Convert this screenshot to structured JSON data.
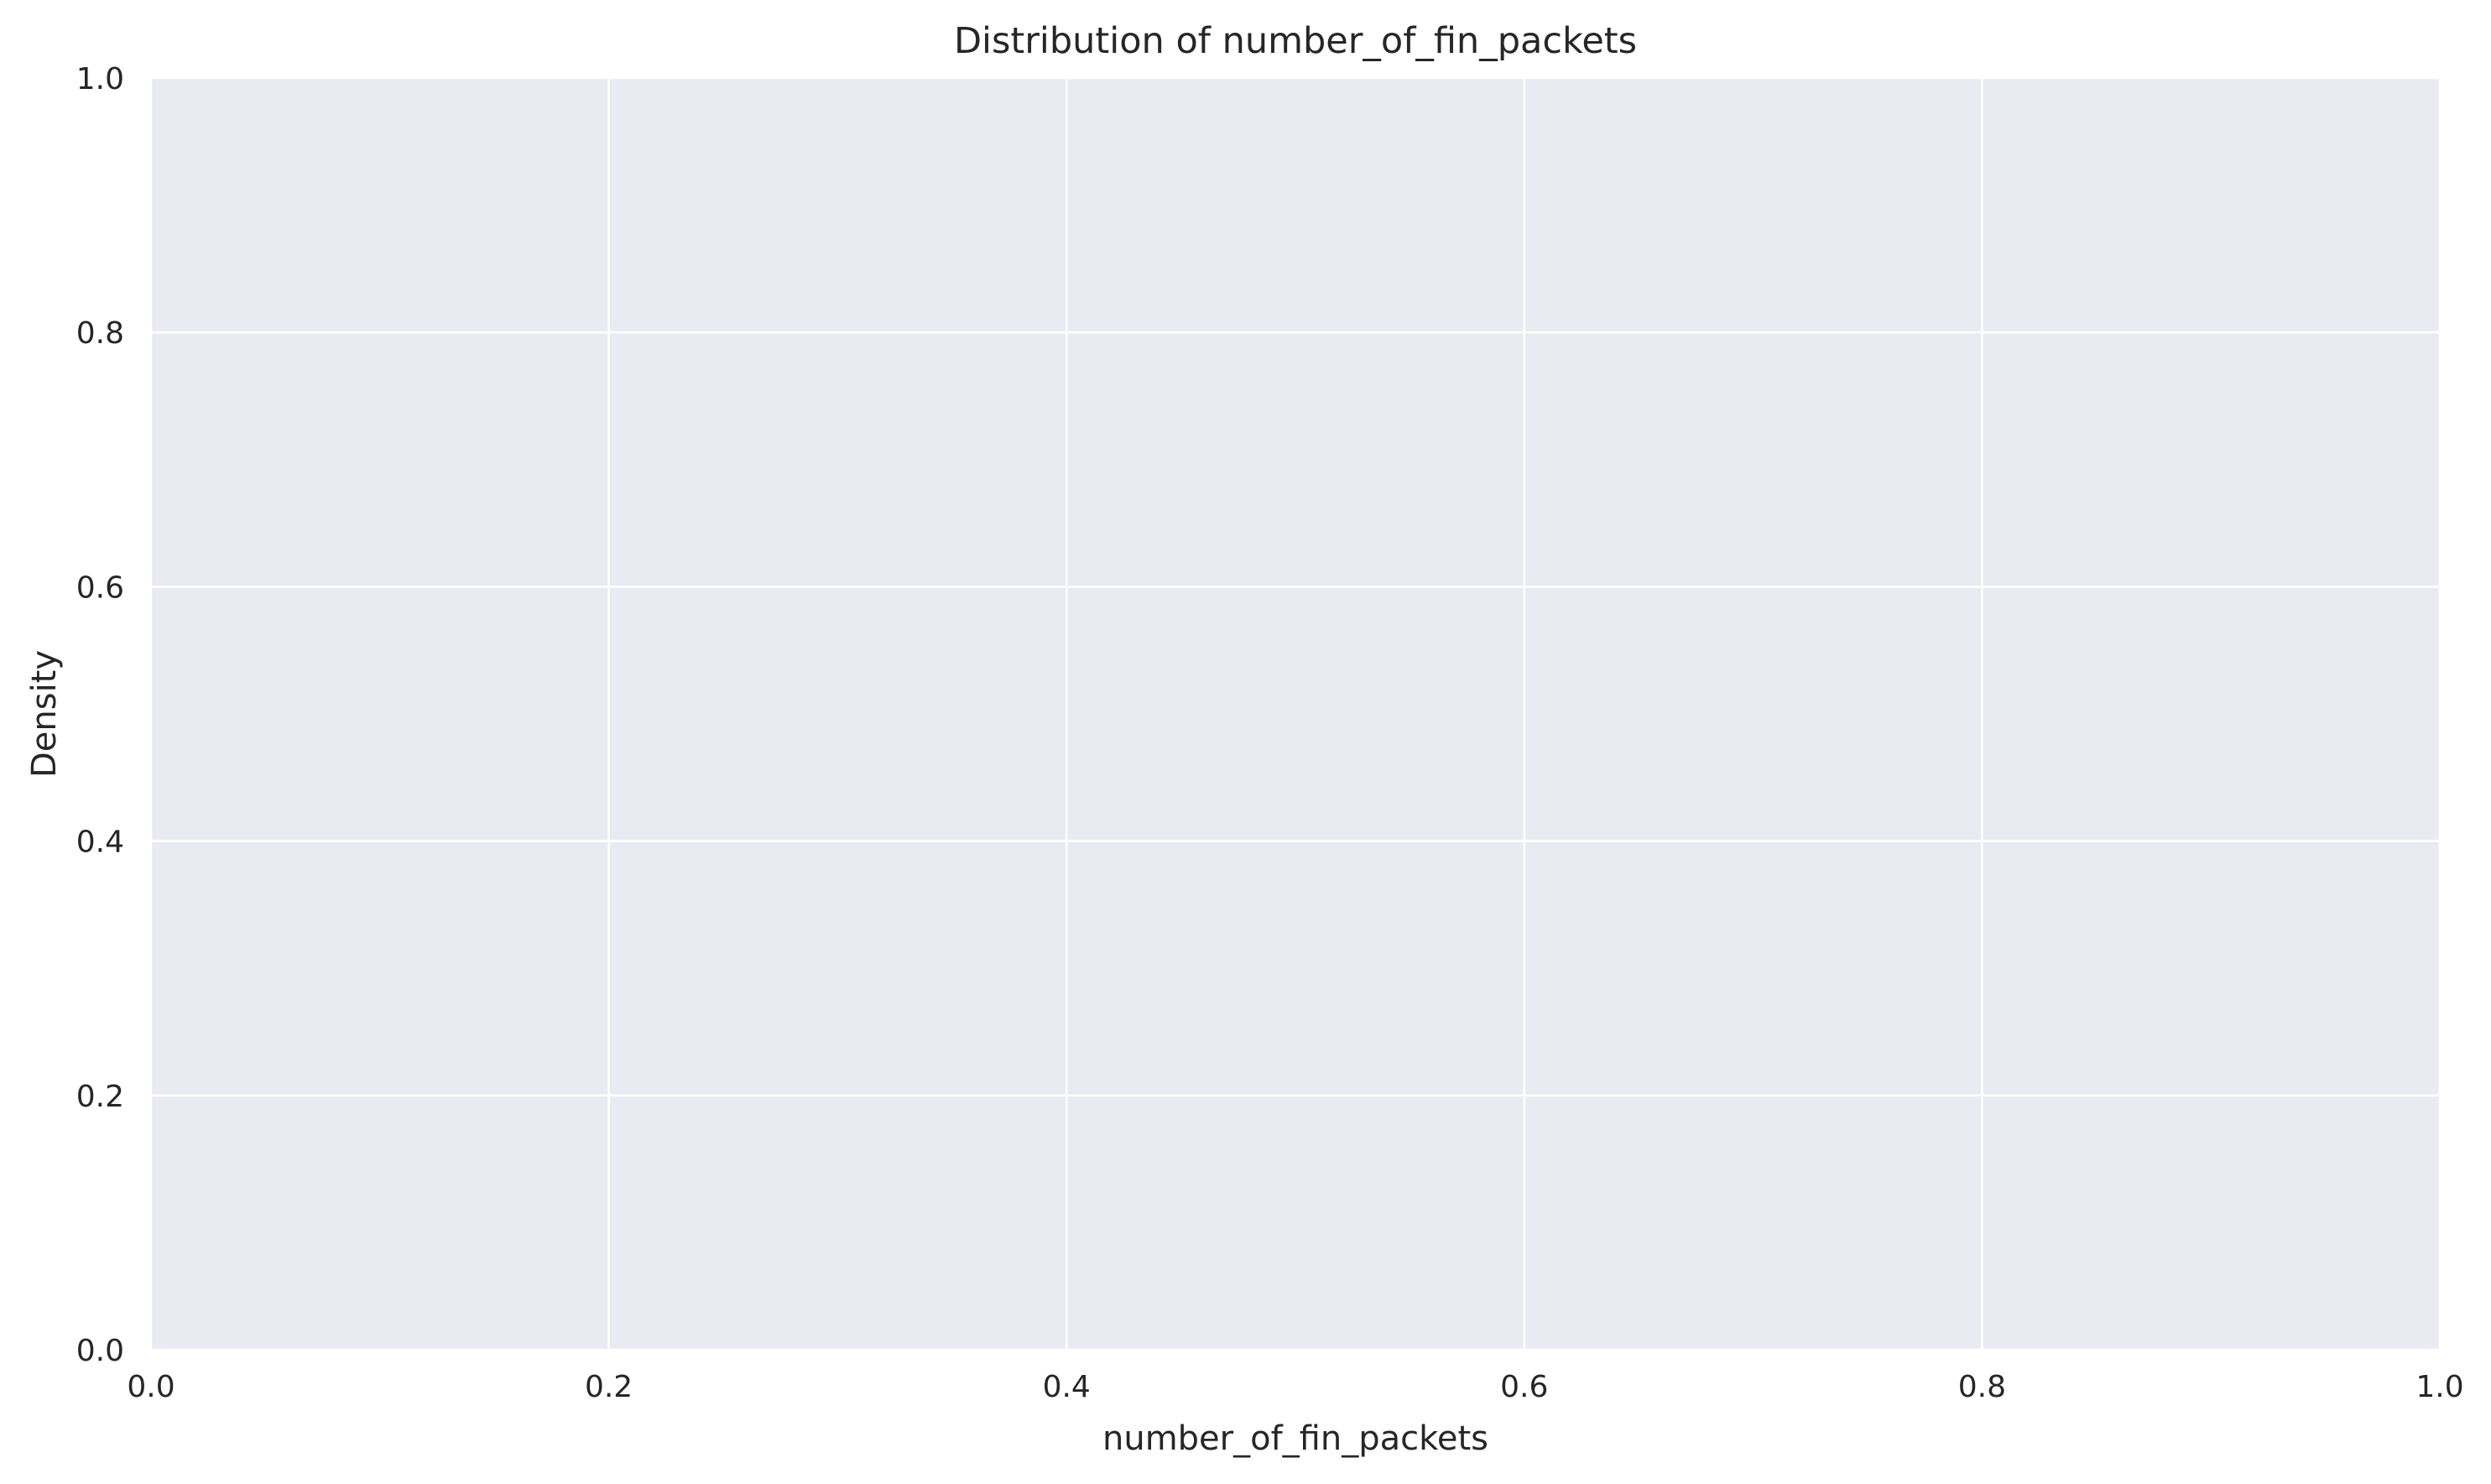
{
  "chart_data": {
    "type": "line",
    "title": "Distribution of number_of_fin_packets",
    "xlabel": "number_of_fin_packets",
    "ylabel": "Density",
    "xlim": [
      0.0,
      1.0
    ],
    "ylim": [
      0.0,
      1.0
    ],
    "xticks": [
      "0.0",
      "0.2",
      "0.4",
      "0.6",
      "0.8",
      "1.0"
    ],
    "yticks": [
      "0.0",
      "0.2",
      "0.4",
      "0.6",
      "0.8",
      "1.0"
    ],
    "series": [],
    "grid": true,
    "background_color": "#eaeaf2",
    "grid_color": "#ffffff",
    "text_color": "#262626"
  }
}
